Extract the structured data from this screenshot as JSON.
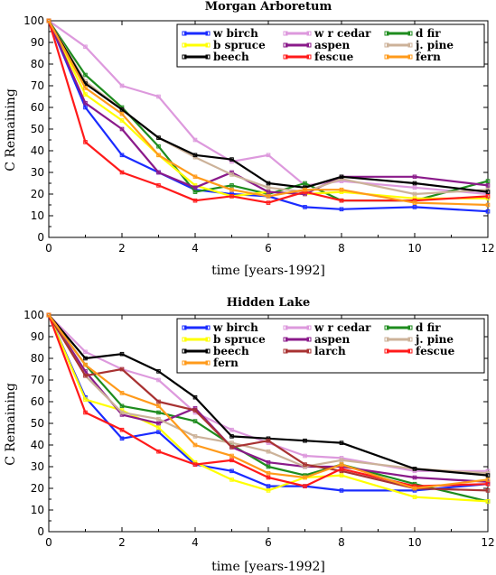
{
  "chart_data": [
    {
      "type": "line",
      "title": "Morgan Arboretum",
      "xlabel": "time [years-1992]",
      "ylabel": "C Remaining",
      "xlim": [
        0,
        12
      ],
      "ylim": [
        0,
        100
      ],
      "xticks": [
        0,
        2,
        4,
        6,
        8,
        10,
        12
      ],
      "yticks": [
        0,
        10,
        20,
        30,
        40,
        50,
        60,
        70,
        80,
        90,
        100
      ],
      "legend_position": "top-right",
      "legend_columns": 3,
      "series": [
        {
          "name": "w birch",
          "color": "#1a2bff",
          "x": [
            0,
            1,
            2,
            3,
            4,
            5,
            6,
            7,
            8,
            10,
            12
          ],
          "y": [
            100,
            60,
            38,
            30,
            22,
            20,
            19,
            14,
            13,
            14,
            12
          ]
        },
        {
          "name": "w r cedar",
          "color": "#dd99dd",
          "x": [
            0,
            1,
            2,
            3,
            4,
            5,
            6,
            7,
            8,
            10,
            12
          ],
          "y": [
            100,
            88,
            70,
            65,
            45,
            35,
            38,
            24,
            26,
            23,
            20
          ]
        },
        {
          "name": "d fir",
          "color": "#1e8c1e",
          "x": [
            0,
            1,
            2,
            3,
            4,
            5,
            6,
            7,
            8,
            10,
            12
          ],
          "y": [
            100,
            75,
            60,
            42,
            21,
            24,
            20,
            25,
            17,
            17,
            26
          ]
        },
        {
          "name": "b spruce",
          "color": "#ffff00",
          "x": [
            0,
            1,
            2,
            3,
            4,
            5,
            6,
            7,
            8,
            10,
            12
          ],
          "y": [
            100,
            66,
            54,
            38,
            24,
            19,
            21,
            20,
            21,
            18,
            18
          ]
        },
        {
          "name": "aspen",
          "color": "#8a1a8a",
          "x": [
            0,
            1,
            2,
            3,
            4,
            5,
            6,
            7,
            8,
            10,
            12
          ],
          "y": [
            100,
            62,
            50,
            30,
            23,
            30,
            21,
            20,
            28,
            28,
            24
          ]
        },
        {
          "name": "j. pine",
          "color": "#ccb299",
          "x": [
            0,
            1,
            2,
            3,
            4,
            5,
            6,
            7,
            8,
            10,
            12
          ],
          "y": [
            100,
            72,
            59,
            46,
            37,
            29,
            23,
            21,
            27,
            20,
            22
          ]
        },
        {
          "name": "beech",
          "color": "#000000",
          "x": [
            0,
            1,
            2,
            3,
            4,
            5,
            6,
            7,
            8,
            10,
            12
          ],
          "y": [
            100,
            71,
            59,
            46,
            38,
            36,
            25,
            23,
            28,
            25,
            21
          ]
        },
        {
          "name": "fescue",
          "color": "#ff1a1a",
          "x": [
            0,
            1,
            2,
            3,
            4,
            5,
            6,
            7,
            8,
            10,
            12
          ],
          "y": [
            100,
            44,
            30,
            24,
            17,
            19,
            16,
            21,
            17,
            17,
            19
          ]
        },
        {
          "name": "fern",
          "color": "#ff9a1a",
          "x": [
            0,
            1,
            2,
            3,
            4,
            5,
            6,
            7,
            8,
            10,
            12
          ],
          "y": [
            100,
            69,
            57,
            38,
            28,
            22,
            19,
            22,
            22,
            16,
            15
          ]
        }
      ]
    },
    {
      "type": "line",
      "title": "Hidden Lake",
      "xlabel": "time [years-1992]",
      "ylabel": "C Remaining",
      "xlim": [
        0,
        12
      ],
      "ylim": [
        0,
        100
      ],
      "xticks": [
        0,
        2,
        4,
        6,
        8,
        10,
        12
      ],
      "yticks": [
        0,
        10,
        20,
        30,
        40,
        50,
        60,
        70,
        80,
        90,
        100
      ],
      "legend_position": "top-right",
      "legend_columns": 3,
      "series": [
        {
          "name": "w birch",
          "color": "#1a2bff",
          "x": [
            0,
            1,
            2,
            3,
            4,
            5,
            6,
            7,
            8,
            10,
            12
          ],
          "y": [
            100,
            62,
            43,
            46,
            31,
            28,
            21,
            21,
            19,
            19,
            22
          ]
        },
        {
          "name": "w r cedar",
          "color": "#dd99dd",
          "x": [
            0,
            1,
            2,
            3,
            4,
            5,
            6,
            7,
            8,
            10,
            12
          ],
          "y": [
            100,
            83,
            75,
            70,
            55,
            47,
            41,
            35,
            34,
            28,
            28
          ]
        },
        {
          "name": "d fir",
          "color": "#1e8c1e",
          "x": [
            0,
            1,
            2,
            3,
            4,
            5,
            6,
            7,
            8,
            10,
            12
          ],
          "y": [
            100,
            77,
            58,
            55,
            51,
            40,
            30,
            26,
            31,
            22,
            14
          ]
        },
        {
          "name": "b spruce",
          "color": "#ffff00",
          "x": [
            0,
            1,
            2,
            3,
            4,
            5,
            6,
            7,
            8,
            10,
            12
          ],
          "y": [
            100,
            61,
            56,
            48,
            32,
            24,
            19,
            25,
            26,
            16,
            14
          ]
        },
        {
          "name": "aspen",
          "color": "#8a1a8a",
          "x": [
            0,
            1,
            2,
            3,
            4,
            5,
            6,
            7,
            8,
            10,
            12
          ],
          "y": [
            100,
            74,
            54,
            50,
            57,
            39,
            32,
            30,
            30,
            25,
            23
          ]
        },
        {
          "name": "j. pine",
          "color": "#ccb299",
          "x": [
            0,
            1,
            2,
            3,
            4,
            5,
            6,
            7,
            8,
            10,
            12
          ],
          "y": [
            100,
            72,
            55,
            52,
            44,
            41,
            37,
            30,
            33,
            29,
            27
          ]
        },
        {
          "name": "beech",
          "color": "#000000",
          "x": [
            0,
            1,
            2,
            3,
            4,
            5,
            6,
            7,
            8,
            10,
            12
          ],
          "y": [
            100,
            80,
            82,
            74,
            62,
            44,
            43,
            42,
            41,
            29,
            26
          ]
        },
        {
          "name": "larch",
          "color": "#a83232",
          "x": [
            0,
            1,
            2,
            3,
            4,
            5,
            6,
            7,
            8,
            10,
            12
          ],
          "y": [
            100,
            72,
            75,
            60,
            56,
            39,
            42,
            31,
            28,
            20,
            19
          ]
        },
        {
          "name": "fescue",
          "color": "#ff1a1a",
          "x": [
            0,
            1,
            2,
            3,
            4,
            5,
            6,
            7,
            8,
            10,
            12
          ],
          "y": [
            100,
            55,
            47,
            37,
            31,
            33,
            25,
            21,
            29,
            21,
            22
          ]
        },
        {
          "name": "fern",
          "color": "#ff9a1a",
          "x": [
            0,
            1,
            2,
            3,
            4,
            5,
            6,
            7,
            8,
            10,
            12
          ],
          "y": [
            100,
            77,
            64,
            58,
            40,
            35,
            27,
            25,
            31,
            20,
            24
          ]
        }
      ]
    }
  ]
}
